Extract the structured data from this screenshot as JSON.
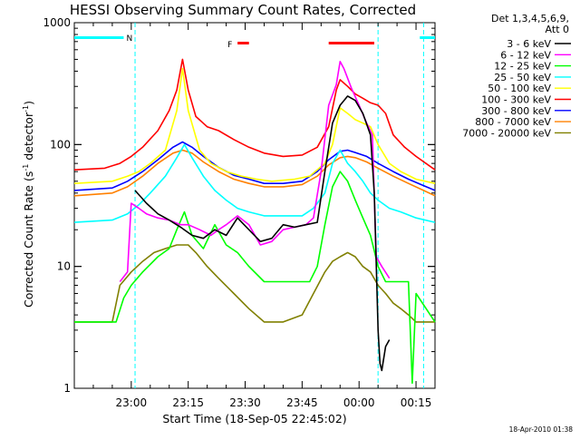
{
  "chart_data": {
    "type": "line",
    "title": "HESSI Observing Summary Count Rates, Corrected",
    "xlabel": "Start Time (18-Sep-05 22:45:02)",
    "ylabel": "Corrected Count Rate (s",
    "ylabel_sup1": "-1",
    "ylabel_mid": " detector",
    "ylabel_sup2": "-1",
    "ylabel_end": ")",
    "y_scale": "log",
    "ylim": [
      1,
      1000
    ],
    "xlim_minutes_from_start": [
      0,
      95
    ],
    "y_ticks": [
      {
        "value": 1000,
        "label": "1000"
      },
      {
        "value": 100,
        "label": "100"
      },
      {
        "value": 10,
        "label": "10"
      },
      {
        "value": 1,
        "label": "1"
      }
    ],
    "x_ticks": [
      {
        "minutes": 15,
        "label": "23:00"
      },
      {
        "minutes": 30,
        "label": "23:15"
      },
      {
        "minutes": 45,
        "label": "23:30"
      },
      {
        "minutes": 60,
        "label": "23:45"
      },
      {
        "minutes": 75,
        "label": "00:00"
      },
      {
        "minutes": 90,
        "label": "00:15"
      }
    ],
    "legend_header": [
      "Det 1,3,4,5,6,9,",
      "Att 0"
    ],
    "series": [
      {
        "name": "3 - 6 keV",
        "color": "#000000",
        "points": [
          [
            16,
            42
          ],
          [
            19,
            33
          ],
          [
            22,
            27
          ],
          [
            25,
            24
          ],
          [
            28,
            21
          ],
          [
            31,
            18
          ],
          [
            34,
            17
          ],
          [
            37,
            20
          ],
          [
            40,
            18
          ],
          [
            43,
            25
          ],
          [
            46,
            20
          ],
          [
            49,
            16
          ],
          [
            52,
            17
          ],
          [
            55,
            22
          ],
          [
            58,
            21
          ],
          [
            61,
            22
          ],
          [
            64,
            23
          ],
          [
            66,
            60
          ],
          [
            68,
            150
          ],
          [
            70,
            210
          ],
          [
            72,
            250
          ],
          [
            74,
            230
          ],
          [
            76,
            180
          ],
          [
            78,
            120
          ],
          [
            79,
            40
          ],
          [
            80,
            3
          ],
          [
            80.5,
            1.6
          ],
          [
            81,
            1.4
          ],
          [
            82,
            2.2
          ],
          [
            83,
            2.5
          ]
        ]
      },
      {
        "name": "6 - 12 keV",
        "color": "#ff00ff",
        "points": [
          [
            12,
            7.5
          ],
          [
            14,
            9
          ],
          [
            15,
            33
          ],
          [
            17,
            30
          ],
          [
            19,
            27
          ],
          [
            22,
            25
          ],
          [
            25,
            24
          ],
          [
            28,
            22
          ],
          [
            30,
            22
          ],
          [
            33,
            20
          ],
          [
            36,
            18
          ],
          [
            38,
            20
          ],
          [
            40,
            22
          ],
          [
            43,
            26
          ],
          [
            46,
            22
          ],
          [
            49,
            15
          ],
          [
            52,
            16
          ],
          [
            55,
            20
          ],
          [
            58,
            21
          ],
          [
            61,
            22
          ],
          [
            63,
            25
          ],
          [
            65,
            60
          ],
          [
            67,
            210
          ],
          [
            69,
            310
          ],
          [
            70,
            480
          ],
          [
            71,
            420
          ],
          [
            73,
            290
          ],
          [
            75,
            210
          ],
          [
            77,
            150
          ],
          [
            78.5,
            120
          ],
          [
            79.5,
            12
          ],
          [
            81,
            10
          ],
          [
            83,
            8
          ]
        ]
      },
      {
        "name": "12 - 25 keV",
        "color": "#00ff00",
        "points": [
          [
            0,
            3.5
          ],
          [
            11,
            3.5
          ],
          [
            13,
            5.5
          ],
          [
            15,
            7
          ],
          [
            18,
            9
          ],
          [
            22,
            12
          ],
          [
            25,
            14
          ],
          [
            27,
            20
          ],
          [
            29,
            28
          ],
          [
            31,
            18
          ],
          [
            34,
            14
          ],
          [
            37,
            22
          ],
          [
            40,
            15
          ],
          [
            43,
            13
          ],
          [
            46,
            10
          ],
          [
            50,
            7.5
          ],
          [
            56,
            7.5
          ],
          [
            62,
            7.5
          ],
          [
            64,
            10
          ],
          [
            66,
            22
          ],
          [
            68,
            45
          ],
          [
            70,
            60
          ],
          [
            72,
            50
          ],
          [
            74,
            35
          ],
          [
            76,
            25
          ],
          [
            78,
            18
          ],
          [
            80,
            10
          ],
          [
            82,
            7.5
          ],
          [
            86,
            7.5
          ],
          [
            88,
            7.5
          ],
          [
            89,
            1.1
          ],
          [
            90,
            6
          ],
          [
            95,
            3.5
          ]
        ]
      },
      {
        "name": "25 - 50 keV",
        "color": "#00ffff",
        "points": [
          [
            0,
            23
          ],
          [
            10,
            24
          ],
          [
            14,
            27
          ],
          [
            17,
            32
          ],
          [
            20,
            40
          ],
          [
            24,
            55
          ],
          [
            27,
            78
          ],
          [
            29,
            100
          ],
          [
            31,
            78
          ],
          [
            34,
            55
          ],
          [
            37,
            42
          ],
          [
            40,
            35
          ],
          [
            43,
            30
          ],
          [
            46,
            28
          ],
          [
            50,
            26
          ],
          [
            55,
            26
          ],
          [
            60,
            26
          ],
          [
            63,
            30
          ],
          [
            66,
            40
          ],
          [
            68,
            70
          ],
          [
            70,
            90
          ],
          [
            72,
            70
          ],
          [
            74,
            60
          ],
          [
            76,
            50
          ],
          [
            78,
            40
          ],
          [
            80,
            35
          ],
          [
            83,
            30
          ],
          [
            86,
            28
          ],
          [
            90,
            25
          ],
          [
            95,
            23
          ]
        ]
      },
      {
        "name": "50 - 100 keV",
        "color": "#ffff00",
        "points": [
          [
            0,
            48
          ],
          [
            10,
            50
          ],
          [
            14,
            55
          ],
          [
            17,
            60
          ],
          [
            20,
            70
          ],
          [
            24,
            90
          ],
          [
            27,
            190
          ],
          [
            28.5,
            420
          ],
          [
            30,
            190
          ],
          [
            33,
            90
          ],
          [
            36,
            70
          ],
          [
            40,
            60
          ],
          [
            44,
            55
          ],
          [
            48,
            52
          ],
          [
            52,
            50
          ],
          [
            58,
            52
          ],
          [
            62,
            55
          ],
          [
            66,
            70
          ],
          [
            68,
            100
          ],
          [
            70,
            200
          ],
          [
            72,
            180
          ],
          [
            74,
            160
          ],
          [
            76,
            150
          ],
          [
            78,
            140
          ],
          [
            80,
            100
          ],
          [
            83,
            70
          ],
          [
            86,
            60
          ],
          [
            90,
            52
          ],
          [
            95,
            48
          ]
        ]
      },
      {
        "name": "100 - 300 keV",
        "color": "#ff0000",
        "points": [
          [
            0,
            62
          ],
          [
            8,
            64
          ],
          [
            12,
            70
          ],
          [
            15,
            80
          ],
          [
            18,
            95
          ],
          [
            22,
            130
          ],
          [
            25,
            190
          ],
          [
            27,
            280
          ],
          [
            28.5,
            500
          ],
          [
            30,
            280
          ],
          [
            32,
            170
          ],
          [
            35,
            140
          ],
          [
            38,
            130
          ],
          [
            42,
            110
          ],
          [
            46,
            95
          ],
          [
            50,
            85
          ],
          [
            55,
            80
          ],
          [
            60,
            82
          ],
          [
            64,
            95
          ],
          [
            67,
            140
          ],
          [
            69,
            280
          ],
          [
            70,
            340
          ],
          [
            72,
            300
          ],
          [
            74,
            260
          ],
          [
            76,
            240
          ],
          [
            78,
            220
          ],
          [
            80,
            210
          ],
          [
            82,
            180
          ],
          [
            84,
            120
          ],
          [
            87,
            95
          ],
          [
            90,
            80
          ],
          [
            95,
            62
          ]
        ]
      },
      {
        "name": "300 - 800 keV",
        "color": "#0000ff",
        "points": [
          [
            0,
            42
          ],
          [
            10,
            44
          ],
          [
            14,
            50
          ],
          [
            18,
            60
          ],
          [
            22,
            75
          ],
          [
            26,
            95
          ],
          [
            28.5,
            105
          ],
          [
            31,
            95
          ],
          [
            34,
            80
          ],
          [
            38,
            65
          ],
          [
            42,
            56
          ],
          [
            46,
            52
          ],
          [
            50,
            48
          ],
          [
            55,
            48
          ],
          [
            60,
            50
          ],
          [
            64,
            60
          ],
          [
            67,
            75
          ],
          [
            70,
            88
          ],
          [
            72,
            90
          ],
          [
            74,
            86
          ],
          [
            77,
            80
          ],
          [
            80,
            70
          ],
          [
            84,
            60
          ],
          [
            88,
            52
          ],
          [
            92,
            46
          ],
          [
            95,
            42
          ]
        ]
      },
      {
        "name": "800 - 7000 keV",
        "color": "#ff8000",
        "points": [
          [
            0,
            38
          ],
          [
            10,
            40
          ],
          [
            14,
            45
          ],
          [
            18,
            55
          ],
          [
            22,
            70
          ],
          [
            26,
            85
          ],
          [
            28.5,
            90
          ],
          [
            31,
            85
          ],
          [
            34,
            72
          ],
          [
            38,
            60
          ],
          [
            42,
            52
          ],
          [
            46,
            48
          ],
          [
            50,
            45
          ],
          [
            55,
            45
          ],
          [
            60,
            47
          ],
          [
            64,
            55
          ],
          [
            67,
            68
          ],
          [
            70,
            78
          ],
          [
            72,
            80
          ],
          [
            74,
            78
          ],
          [
            77,
            72
          ],
          [
            80,
            64
          ],
          [
            84,
            55
          ],
          [
            88,
            48
          ],
          [
            92,
            42
          ],
          [
            95,
            38
          ]
        ]
      },
      {
        "name": "7000 - 20000 keV",
        "color": "#808000",
        "points": [
          [
            0,
            3.5
          ],
          [
            10,
            3.5
          ],
          [
            12,
            7
          ],
          [
            15,
            9
          ],
          [
            18,
            11
          ],
          [
            21,
            13
          ],
          [
            24,
            14
          ],
          [
            27,
            15
          ],
          [
            30,
            15
          ],
          [
            32,
            13
          ],
          [
            35,
            10
          ],
          [
            38,
            8
          ],
          [
            42,
            6
          ],
          [
            46,
            4.5
          ],
          [
            50,
            3.5
          ],
          [
            55,
            3.5
          ],
          [
            60,
            4
          ],
          [
            63,
            6
          ],
          [
            66,
            9
          ],
          [
            68,
            11
          ],
          [
            70,
            12
          ],
          [
            72,
            13
          ],
          [
            74,
            12
          ],
          [
            76,
            10
          ],
          [
            78,
            9
          ],
          [
            80,
            7
          ],
          [
            82,
            6
          ],
          [
            84,
            5
          ],
          [
            86,
            4.5
          ],
          [
            88,
            4
          ],
          [
            90,
            3.5
          ],
          [
            95,
            3.5
          ]
        ]
      }
    ],
    "state_bars": {
      "saa": {
        "color": "#00ffff",
        "label": "N",
        "segments": [
          [
            0,
            13
          ],
          [
            91,
            95
          ]
        ]
      },
      "flare": {
        "color": "#ff0000",
        "label": "F",
        "segments": [
          [
            43,
            46
          ],
          [
            67,
            79
          ]
        ]
      },
      "night_lines_minutes": [
        16,
        80,
        92
      ]
    },
    "footer_timestamp": "18-Apr-2010 01:38"
  }
}
